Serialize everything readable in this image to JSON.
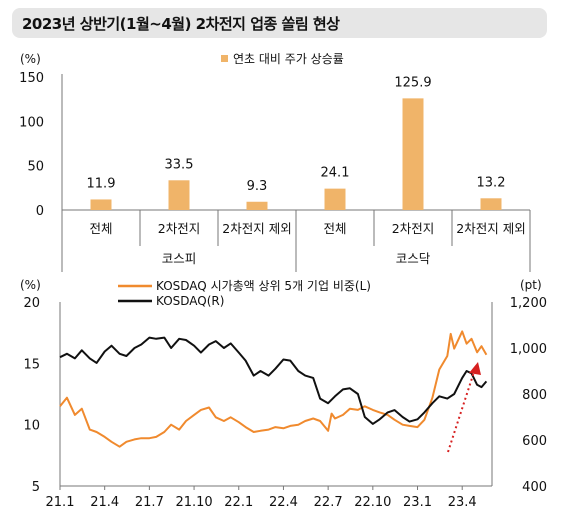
{
  "title": "2023년 상반기(1월~4월) 2차전지 업종 쏠림 현상",
  "chart_data": [
    {
      "type": "bar",
      "ylabel": "(%)",
      "ylim": [
        0,
        150
      ],
      "yticks": [
        0,
        50,
        100,
        150
      ],
      "legend": {
        "label": "연초 대비 주가 상승률",
        "placement": "top-right",
        "color": "#f0b469"
      },
      "categories": [
        "전체",
        "2차전지",
        "2차전지 제외",
        "전체",
        "2차전지",
        "2차전지 제외"
      ],
      "groups": [
        {
          "label": "코스피",
          "count": 3
        },
        {
          "label": "코스닥",
          "count": 3
        }
      ],
      "values": [
        11.9,
        33.5,
        9.3,
        24.1,
        125.9,
        13.2
      ],
      "data_labels": [
        "11.9",
        "33.5",
        "9.3",
        "24.1",
        "125.9",
        "13.2"
      ]
    },
    {
      "type": "line",
      "ylabel_left": "(%)",
      "ylabel_right": "(pt)",
      "ylim_left": [
        5,
        20
      ],
      "yticks_left": [
        5,
        10,
        15,
        20
      ],
      "ylim_right": [
        400,
        1200
      ],
      "yticks_right": [
        "400",
        "600",
        "800",
        "1,000",
        "1,200"
      ],
      "yticks_right_values": [
        400,
        600,
        800,
        1000,
        1200
      ],
      "xlim": [
        "2021-01",
        "2023-06"
      ],
      "xticks": [
        "21.1",
        "21.4",
        "21.7",
        "21.10",
        "22.1",
        "22.4",
        "22.7",
        "22.10",
        "23.1",
        "23.4"
      ],
      "grid": false,
      "series": [
        {
          "name": "KOSDAQ 시가총액 상위 5개 기업 비중(L)",
          "axis": "left",
          "color": "#f08a2e",
          "points": [
            [
              "2021-01",
              11.5
            ],
            [
              "2021-01-15",
              12.2
            ],
            [
              "2021-02",
              10.8
            ],
            [
              "2021-02-15",
              11.3
            ],
            [
              "2021-03",
              9.6
            ],
            [
              "2021-03-15",
              9.4
            ],
            [
              "2021-04",
              9.0
            ],
            [
              "2021-04-15",
              8.6
            ],
            [
              "2021-05",
              8.2
            ],
            [
              "2021-05-15",
              8.6
            ],
            [
              "2021-06",
              8.8
            ],
            [
              "2021-06-15",
              8.9
            ],
            [
              "2021-07",
              8.9
            ],
            [
              "2021-07-15",
              9.0
            ],
            [
              "2021-08",
              9.4
            ],
            [
              "2021-08-15",
              10.0
            ],
            [
              "2021-09",
              9.6
            ],
            [
              "2021-09-15",
              10.3
            ],
            [
              "2021-10",
              10.8
            ],
            [
              "2021-10-15",
              11.2
            ],
            [
              "2021-11",
              11.4
            ],
            [
              "2021-11-15",
              10.6
            ],
            [
              "2021-12",
              10.3
            ],
            [
              "2021-12-15",
              10.6
            ],
            [
              "2022-01",
              10.2
            ],
            [
              "2022-01-15",
              9.8
            ],
            [
              "2022-02",
              9.4
            ],
            [
              "2022-02-15",
              9.5
            ],
            [
              "2022-03",
              9.6
            ],
            [
              "2022-03-15",
              9.8
            ],
            [
              "2022-04",
              9.7
            ],
            [
              "2022-04-15",
              9.9
            ],
            [
              "2022-05",
              10.0
            ],
            [
              "2022-05-15",
              10.3
            ],
            [
              "2022-06",
              10.5
            ],
            [
              "2022-06-15",
              10.3
            ],
            [
              "2022-07",
              9.5
            ],
            [
              "2022-07-08",
              10.9
            ],
            [
              "2022-07-15",
              10.5
            ],
            [
              "2022-08",
              10.8
            ],
            [
              "2022-08-15",
              11.3
            ],
            [
              "2022-09",
              11.2
            ],
            [
              "2022-09-15",
              11.5
            ],
            [
              "2022-10",
              11.2
            ],
            [
              "2022-10-15",
              11.0
            ],
            [
              "2022-11",
              10.8
            ],
            [
              "2022-11-15",
              10.4
            ],
            [
              "2022-12",
              10.0
            ],
            [
              "2022-12-15",
              9.9
            ],
            [
              "2023-01",
              9.8
            ],
            [
              "2023-01-15",
              10.4
            ],
            [
              "2023-02",
              12.2
            ],
            [
              "2023-02-15",
              14.5
            ],
            [
              "2023-03",
              15.6
            ],
            [
              "2023-03-08",
              17.4
            ],
            [
              "2023-03-15",
              16.2
            ],
            [
              "2023-04",
              17.6
            ],
            [
              "2023-04-10",
              16.6
            ],
            [
              "2023-04-20",
              17.0
            ],
            [
              "2023-05",
              15.9
            ],
            [
              "2023-05-10",
              16.4
            ],
            [
              "2023-05-20",
              15.7
            ]
          ]
        },
        {
          "name": "KOSDAQ(R)",
          "axis": "right",
          "color": "#111111",
          "points": [
            [
              "2021-01",
              960
            ],
            [
              "2021-01-15",
              975
            ],
            [
              "2021-02",
              955
            ],
            [
              "2021-02-15",
              990
            ],
            [
              "2021-03",
              955
            ],
            [
              "2021-03-15",
              935
            ],
            [
              "2021-04",
              985
            ],
            [
              "2021-04-15",
              1010
            ],
            [
              "2021-05",
              975
            ],
            [
              "2021-05-15",
              965
            ],
            [
              "2021-06",
              1000
            ],
            [
              "2021-06-15",
              1015
            ],
            [
              "2021-07",
              1045
            ],
            [
              "2021-07-15",
              1040
            ],
            [
              "2021-08",
              1045
            ],
            [
              "2021-08-15",
              1000
            ],
            [
              "2021-09",
              1040
            ],
            [
              "2021-09-15",
              1035
            ],
            [
              "2021-10",
              1010
            ],
            [
              "2021-10-15",
              980
            ],
            [
              "2021-11",
              1015
            ],
            [
              "2021-11-15",
              1030
            ],
            [
              "2021-12",
              1000
            ],
            [
              "2021-12-15",
              1020
            ],
            [
              "2022-01",
              980
            ],
            [
              "2022-01-15",
              945
            ],
            [
              "2022-02",
              880
            ],
            [
              "2022-02-15",
              900
            ],
            [
              "2022-03",
              880
            ],
            [
              "2022-03-15",
              910
            ],
            [
              "2022-04",
              950
            ],
            [
              "2022-04-15",
              945
            ],
            [
              "2022-05",
              900
            ],
            [
              "2022-05-15",
              880
            ],
            [
              "2022-06",
              870
            ],
            [
              "2022-06-15",
              780
            ],
            [
              "2022-07",
              760
            ],
            [
              "2022-07-15",
              790
            ],
            [
              "2022-08",
              820
            ],
            [
              "2022-08-15",
              825
            ],
            [
              "2022-09",
              800
            ],
            [
              "2022-09-15",
              700
            ],
            [
              "2022-10",
              670
            ],
            [
              "2022-10-15",
              690
            ],
            [
              "2022-11",
              720
            ],
            [
              "2022-11-15",
              730
            ],
            [
              "2022-12",
              700
            ],
            [
              "2022-12-15",
              680
            ],
            [
              "2023-01",
              690
            ],
            [
              "2023-01-15",
              720
            ],
            [
              "2023-02",
              760
            ],
            [
              "2023-02-15",
              790
            ],
            [
              "2023-03",
              780
            ],
            [
              "2023-03-15",
              800
            ],
            [
              "2023-04",
              870
            ],
            [
              "2023-04-10",
              900
            ],
            [
              "2023-04-20",
              890
            ],
            [
              "2023-05",
              840
            ],
            [
              "2023-05-10",
              830
            ],
            [
              "2023-05-20",
              855
            ]
          ]
        }
      ],
      "annotation": {
        "type": "dotted-arrow",
        "color": "#d62020"
      }
    }
  ]
}
